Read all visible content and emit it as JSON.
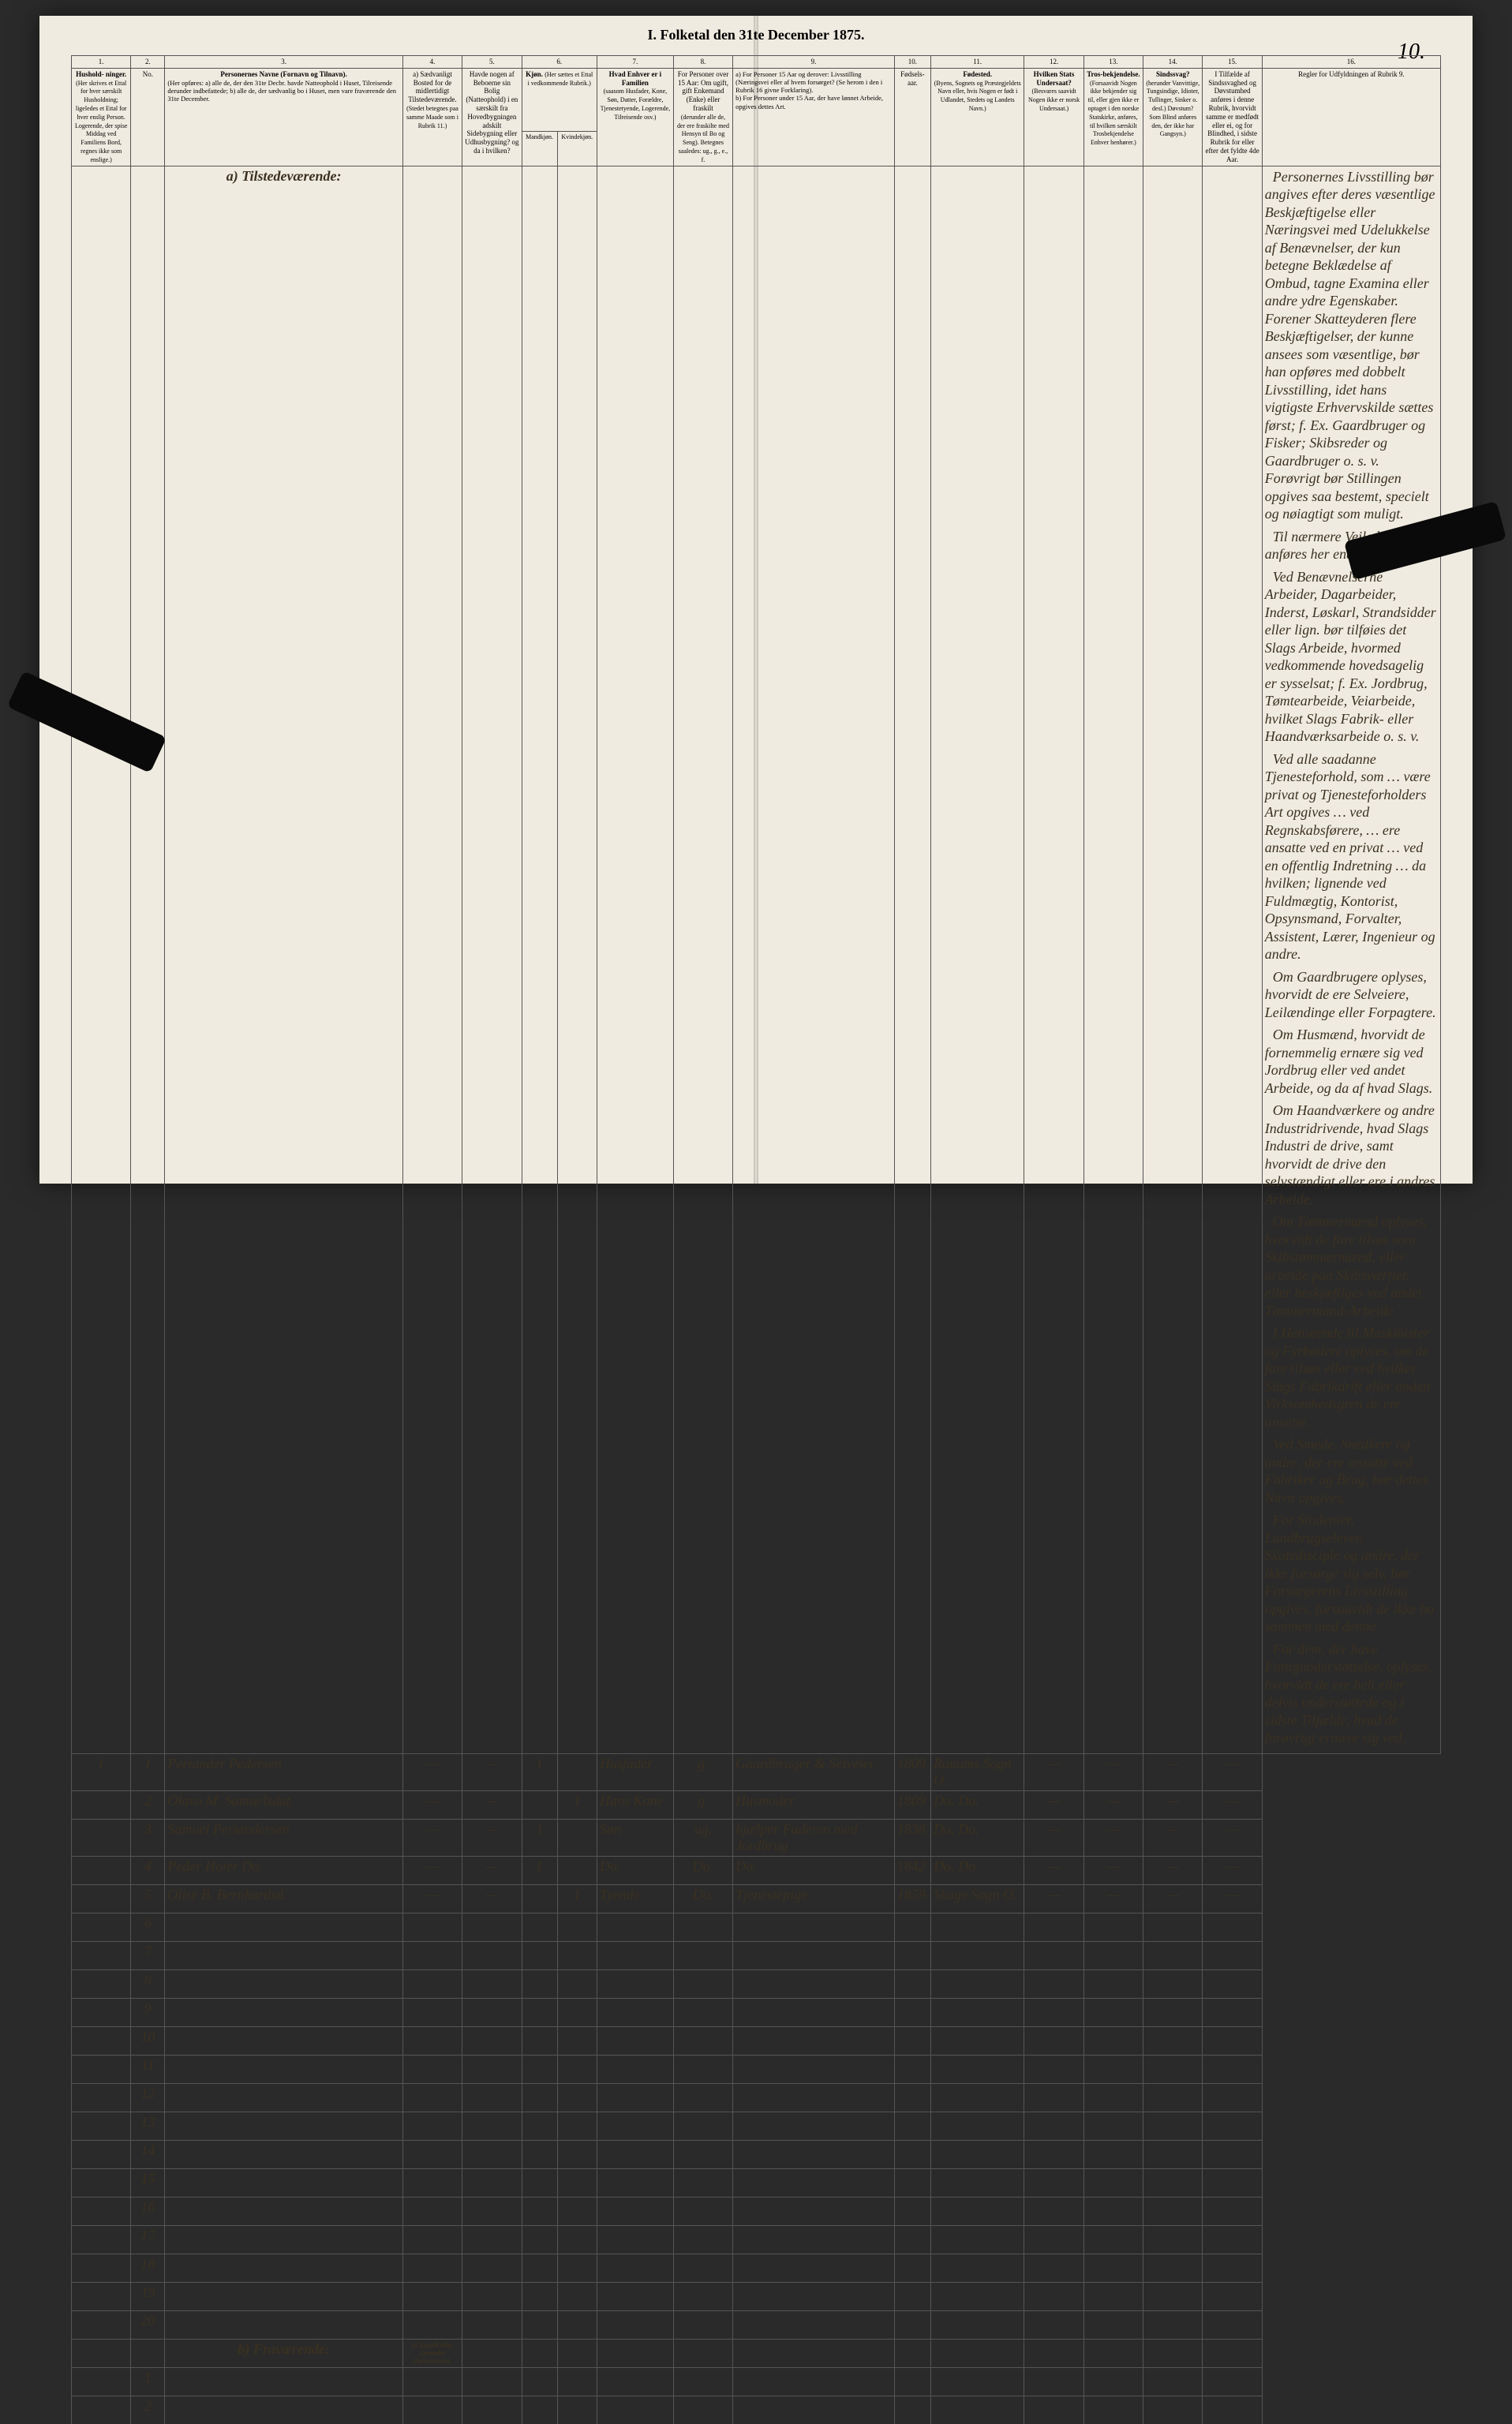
{
  "title": "I. Folketal den 31te December 1875.",
  "page_number": "10.",
  "column_numbers": [
    "1.",
    "2.",
    "3.",
    "4.",
    "5.",
    "6.",
    "7.",
    "8.",
    "9.",
    "10.",
    "11.",
    "12.",
    "13.",
    "14.",
    "15.",
    "16."
  ],
  "headers": {
    "c1": "Hushold-\nninger.",
    "c1_sub": "(Her skrives et Ettal for hver særskilt Husholdning; ligeledes et Ettal for hver enslig Person. Logerende, der spise Middag ved Familiens Bord, regnes ikke som enslige.)",
    "c2": "No.",
    "c3": "Personernes Navne (Fornavn og Tilnavn).",
    "c3_sub": "(Her opføres:\na) alle de, der den 31te Decbr. havde Natteophold i Huset, Tilreisende derunder indbefattede;\nb) alle de, der sædvanlig bo i Huset, men vare fraværende den 31te December.",
    "c4": "a) Sædvanligt Bosted for de midlertidigt Tilstedeværende.",
    "c4_sub": "(Stedet betegnes paa samme Maade som i Rubrik 11.)",
    "c5": "Havde nogen af Beboerne sin Bolig (Natteophold) i en særskilt fra Hovedbygningen adskilt Sidebygning eller Udhusbygning? og da i hvilken?",
    "c6": "Kjøn.",
    "c6a": "Mandkjøn.",
    "c6b": "Kvindekjøn.",
    "c7": "Hvad Enhver er i Familien",
    "c7_sub": "(saasom Husfader, Kone, Søn, Datter, Forældre, Tjenestetyende, Logerende, Tilreisende osv.)",
    "c8": "For Personer over 15 Aar: Om ugift, gift Enkemand (Enke) eller fraskilt",
    "c8_sub": "(derunder alle de, der ere fraskilte med Hensyn til Bo og Seng). Betegnes saaledes: ug., g., e., f.",
    "c9a": "a) For Personer 15 Aar og derover: Livsstilling (Næringsvei eller af hvem forsørget? (Se herom i den i Rubrik 16 givne Forklaring).",
    "c9b": "b) For Personer under 15 Aar, der have lønnet Arbeide, opgives dettes Art.",
    "c10": "Fødsels-aar.",
    "c11": "Fødested.",
    "c11_sub": "(Byens, Sognets og Præstegjeldets Navn eller, hvis Nogen er født i Udlandet, Stedets og Landets Navn.)",
    "c12": "Hvilken Stats Undersaat?",
    "c12_sub": "(Besvares saavidt Nogen ikke er norsk Undersaat.)",
    "c13": "Tros-bekjendelse.",
    "c13_sub": "(Forsaavidt Nogen ikke bekjender sig til, eller gjen ikke er optaget i den norske Statskirke, anføres, til hvilken særskilt Trosbekjendelse Enhver henhører.)",
    "c14": "Sindssvag?",
    "c14_sub": "(herunder Vanvittige, Tungsindige, Idioter, Tullinger, Sinker o. desl.) Døvstum? Som Blind anføres den, der ikke har Gangsyn.)",
    "c15": "I Tilfælde af Sindssvaghed og Døvstumhed anføres i denne Rubrik, hvorvidt samme er medfødt eller ei, og for Blindhed, i sidste Rubrik for eller efter det fyldte 4de Aar.",
    "c16": "Regler for Udfyldningen af Rubrik 9."
  },
  "section_a": "a) Tilstedeværende:",
  "section_b": "b) Fraværende:",
  "section_b_col4": "b) Kjendt eller formodet Opholdssted.",
  "rows": [
    {
      "n": "1",
      "name": "Periander Pedersen",
      "c4": "—",
      "c5": "—",
      "m": "1",
      "k": "",
      "rel": "Husfader",
      "civ": "g.",
      "occ": "Gaardbruger & Selveier",
      "year": "1809",
      "birthplace": "Ranums Sogn O.",
      "c12": "—",
      "c13": "—",
      "c14": "—",
      "c15": "—"
    },
    {
      "n": "2",
      "name": "Olava M. Samuelsdat.",
      "c4": "—",
      "c5": "—",
      "m": "",
      "k": "1",
      "rel": "Hans Kone",
      "civ": "g.",
      "occ": "Husmoder",
      "year": "1809",
      "birthplace": "Do. Do.",
      "c12": "—",
      "c13": "—",
      "c14": "—",
      "c15": "—"
    },
    {
      "n": "3",
      "name": "Samuel Periandersen",
      "c4": "—",
      "c5": "—",
      "m": "1",
      "k": "",
      "rel": "Søn",
      "civ": "ug.",
      "occ": "hjælper Faderen med Jordbrug",
      "year": "1838",
      "birthplace": "Do. Do.",
      "c12": "—",
      "c13": "—",
      "c14": "—",
      "c15": "—"
    },
    {
      "n": "4",
      "name": "Peder Hoier   Do.",
      "c4": "—",
      "c5": "—",
      "m": "1",
      "k": "",
      "rel": "Do.",
      "civ": "Do.",
      "occ": "Do.",
      "year": "1842",
      "birthplace": "Do. Do.",
      "c12": "—",
      "c13": "—",
      "c14": "—",
      "c15": "—"
    },
    {
      "n": "5",
      "name": "Olise B. Bernhardsd.",
      "c4": "—",
      "c5": "—",
      "m": "",
      "k": "1",
      "rel": "Tyende",
      "civ": "Do.",
      "occ": "Tjenestepige",
      "year": "1859",
      "birthplace": "Skage Sogn O.",
      "c12": "—",
      "c13": "—",
      "c14": "—",
      "c15": "—"
    }
  ],
  "empty_rows_a": [
    "6",
    "7",
    "8",
    "9",
    "10",
    "11",
    "12",
    "13",
    "14",
    "15",
    "16",
    "17",
    "18",
    "19",
    "20"
  ],
  "empty_rows_b": [
    "1",
    "2",
    "3",
    "4",
    "5"
  ],
  "side_paragraphs": [
    "Personernes Livsstilling bør angives efter deres væsentlige Beskjæftigelse eller Næringsvei med Udelukkelse af Benævnelser, der kun betegne Beklædelse af Ombud, tagne Examina eller andre ydre Egenskaber. Forener Skatteyderen flere Beskjæftigelser, der kunne ansees som væsentlige, bør han opføres med dobbelt Livsstilling, idet hans vigtigste Erhvervskilde sættes først; f. Ex. Gaardbruger og Fisker; Skibsreder og Gaardbruger o. s. v. Forøvrigt bør Stillingen opgives saa bestemt, specielt og nøiagtigt som muligt.",
    "Til nærmere Veiledning anføres her endel Exempler:",
    "Ved Benævnelserne Arbeider, Dagarbeider, Inderst, Løskarl, Strandsidder eller lign. bør tilføies det Slags Arbeide, hvormed vedkommende hovedsagelig er sysselsat; f. Ex. Jordbrug, Tømtearbeide, Veiarbeide, hvilket Slags Fabrik- eller Haandværksarbeide o. s. v.",
    "Ved alle saadanne Tjenesteforhold, som … være privat og Tjenesteforholders Art opgives … ved Regnskabsførere, … ere ansatte ved en privat … ved en offentlig Indretning … da hvilken; lignende ved Fuldmægtig, Kontorist, Opsynsmand, Forvalter, Assistent, Lærer, Ingenieur og andre.",
    "Om Gaardbrugere oplyses, hvorvidt de ere Selveiere, Leilændinge eller Forpagtere.",
    "Om Husmænd, hvorvidt de fornemmelig ernære sig ved Jordbrug eller ved andet Arbeide, og da af hvad Slags.",
    "Om Haandværkere og andre Industridrivende, hvad Slags Industri de drive, samt hvorvidt de drive den selvstændigt eller ere i andres Arbeide.",
    "Om Tømmermænd oplyses, hvorvidt de fare tilsøs som Skibstømmermænd, eller arbeide paa Skibsværfter, eller beskjæftiges ved andet Tømmermand-Arbeide.",
    "I Henseende til Maskinister og Fyrbødere oplyses, om de fare tilsøs eller ved hvilket Slags Fabrikdrift eller anden Virksomhedsgren de ere ansatte.",
    "Ved Smede, Snedkere og andre, der ere ansatte ved Fabriker og Brug, bør dettes Navn opgives.",
    "For Studenter, Landbrugselever, Skoledisciple og andre, der ikke forsørge sig selv, bør Forsørgerens Livsstilling opgives, forsaavidt de ikke bo sammen med denne.",
    "For dem, der have Fattigunderstøttelse, oplyses, hvorvidt de ere helt eller delvis understøttede og i sidste Tilfælde, hvad de forøvrigt ernære sig ved."
  ],
  "colors": {
    "paper": "#f0ebe0",
    "ink": "#3a3020",
    "rule": "#555555",
    "bg": "#2a2a2a"
  }
}
